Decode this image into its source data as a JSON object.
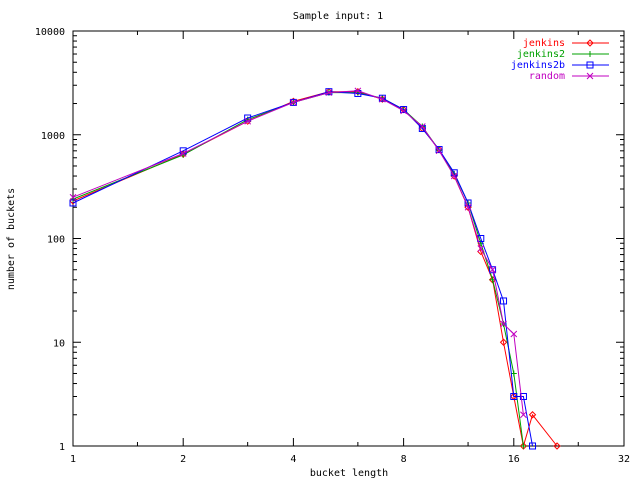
{
  "chart_data": {
    "type": "line",
    "title": "Sample input: 1",
    "xlabel": "bucket length",
    "ylabel": "number of buckets",
    "xscale": "log2",
    "yscale": "log10",
    "xlim": [
      1,
      32
    ],
    "ylim": [
      1,
      10000
    ],
    "xticks": [
      1,
      2,
      4,
      8,
      16,
      32
    ],
    "xtick_labels": [
      "1",
      "2",
      "4",
      "8",
      "16",
      "32"
    ],
    "yticks": [
      1,
      10,
      100,
      1000,
      10000
    ],
    "ytick_labels": [
      "1",
      "10",
      "100",
      "1000",
      "10000"
    ],
    "grid": false,
    "legend_position": "top-right",
    "series": [
      {
        "name": "jenkins",
        "color": "#ff0000",
        "marker": "diamond",
        "x": [
          1,
          2,
          3,
          4,
          5,
          6,
          7,
          8,
          9,
          10,
          11,
          12,
          13,
          14,
          15,
          16,
          17,
          18,
          21
        ],
        "y": [
          230,
          650,
          1350,
          2100,
          2600,
          2600,
          2200,
          1750,
          1150,
          720,
          400,
          200,
          75,
          40,
          10,
          3,
          1,
          2,
          1
        ]
      },
      {
        "name": "jenkins2",
        "color": "#00a000",
        "marker": "plus",
        "x": [
          1,
          2,
          3,
          4,
          5,
          6,
          7,
          8,
          9,
          10,
          11,
          12,
          13,
          14,
          15,
          16,
          17
        ],
        "y": [
          240,
          640,
          1400,
          2050,
          2550,
          2550,
          2250,
          1750,
          1200,
          710,
          420,
          220,
          90,
          40,
          15,
          5,
          1
        ]
      },
      {
        "name": "jenkins2b",
        "color": "#0000ff",
        "marker": "square",
        "x": [
          1,
          2,
          3,
          4,
          5,
          6,
          7,
          8,
          9,
          10,
          11,
          12,
          13,
          14,
          15,
          16,
          17,
          18
        ],
        "y": [
          220,
          700,
          1450,
          2050,
          2600,
          2500,
          2250,
          1750,
          1150,
          720,
          430,
          220,
          100,
          50,
          25,
          3,
          3,
          1
        ]
      },
      {
        "name": "random",
        "color": "#c000c0",
        "marker": "x",
        "x": [
          1,
          2,
          3,
          4,
          5,
          6,
          7,
          8,
          9,
          10,
          11,
          12,
          13,
          14,
          15,
          16,
          17
        ],
        "y": [
          250,
          660,
          1350,
          2050,
          2550,
          2650,
          2200,
          1700,
          1200,
          700,
          400,
          200,
          80,
          50,
          15,
          12,
          2
        ]
      }
    ]
  }
}
